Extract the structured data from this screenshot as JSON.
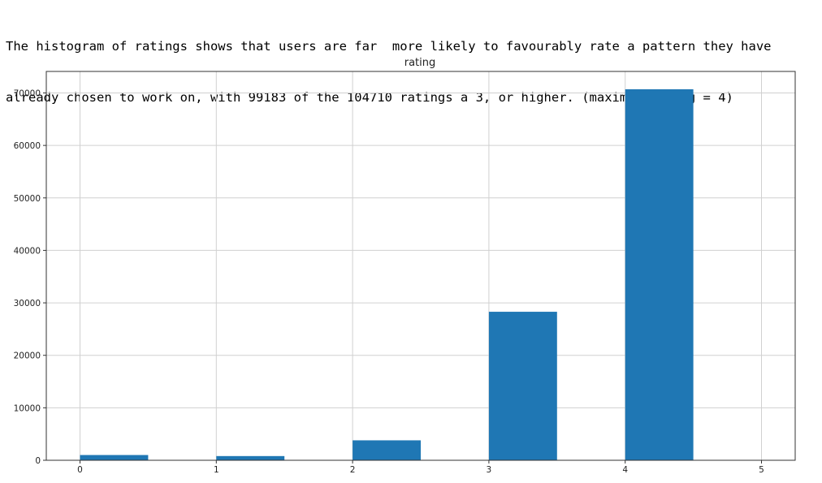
{
  "notebook": {
    "text_line_1": "The histogram of ratings shows that users are far  more likely to favourably rate a pattern they have",
    "text_line_2": "already chosen to work on, with 99183 of the 104710 ratings a 3, or higher. (maximum rating = 4)"
  },
  "chart_data": {
    "type": "bar",
    "title": "rating",
    "xlabel": "",
    "ylabel": "",
    "xlim": [
      0,
      5
    ],
    "ylim": [
      0,
      72000
    ],
    "grid": true,
    "bars": [
      {
        "x0": 0.0,
        "x1": 0.5,
        "value": 1000
      },
      {
        "x0": 0.5,
        "x1": 1.0,
        "value": 0
      },
      {
        "x0": 1.0,
        "x1": 1.5,
        "value": 800
      },
      {
        "x0": 1.5,
        "x1": 2.0,
        "value": 0
      },
      {
        "x0": 2.0,
        "x1": 2.5,
        "value": 3800
      },
      {
        "x0": 2.5,
        "x1": 3.0,
        "value": 0
      },
      {
        "x0": 3.0,
        "x1": 3.5,
        "value": 28300
      },
      {
        "x0": 3.5,
        "x1": 4.0,
        "value": 0
      },
      {
        "x0": 4.0,
        "x1": 4.5,
        "value": 70700
      },
      {
        "x0": 4.5,
        "x1": 5.0,
        "value": 0
      }
    ],
    "xticks": [
      0,
      1,
      2,
      3,
      4,
      5
    ],
    "xtick_labels": [
      "0",
      "1",
      "2",
      "3",
      "4",
      "5"
    ],
    "yticks": [
      0,
      10000,
      20000,
      30000,
      40000,
      50000,
      60000,
      70000
    ],
    "ytick_labels": [
      "0",
      "10000",
      "20000",
      "30000",
      "40000",
      "50000",
      "60000",
      "70000"
    ],
    "bar_color": "#1f77b4",
    "grid_color": "#d0d0d0"
  }
}
